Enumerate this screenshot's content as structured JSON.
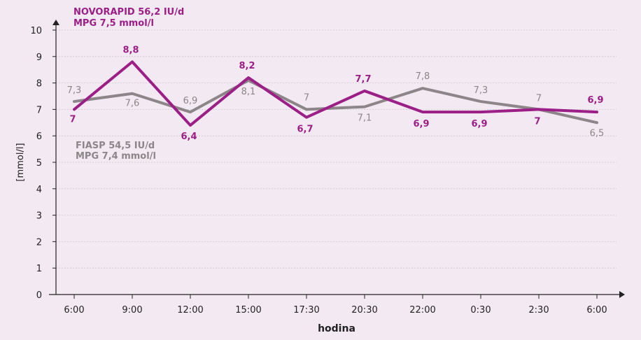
{
  "chart_data": {
    "type": "line",
    "categories": [
      "6:00",
      "9:00",
      "12:00",
      "15:00",
      "17:30",
      "20:30",
      "22:00",
      "0:30",
      "2:30",
      "6:00"
    ],
    "xlabel": "hodina",
    "ylabel": "[mmol/l]",
    "ylim": [
      0,
      10
    ],
    "yticks": [
      "0",
      "1",
      "2",
      "3",
      "4",
      "5",
      "6",
      "7",
      "8",
      "9",
      "10"
    ],
    "grid": true,
    "series": [
      {
        "key": "novorapid",
        "legend_line1": "NOVORAPID 56,2 IU/d",
        "legend_line2": "MPG 7,5 mmol/l",
        "color": "#9b1f86",
        "values": [
          7,
          8.8,
          6.4,
          8.2,
          6.7,
          7.7,
          6.9,
          6.9,
          7,
          6.9
        ],
        "labels": [
          "7",
          "8,8",
          "6,4",
          "8,2",
          "6,7",
          "7,7",
          "6,9",
          "6,9",
          "7",
          "6,9"
        ]
      },
      {
        "key": "fiasp",
        "legend_line1": "FIASP 54,5 IU/d",
        "legend_line2": "MPG 7,4 mmol/l",
        "color": "#8c8689",
        "values": [
          7.3,
          7.6,
          6.9,
          8.1,
          7,
          7.1,
          7.8,
          7.3,
          7,
          6.5
        ],
        "labels": [
          "7,3",
          "7,6",
          "6,9",
          "8,1",
          "7",
          "7,1",
          "7,8",
          "7,3",
          "7",
          "6,5"
        ]
      }
    ]
  }
}
